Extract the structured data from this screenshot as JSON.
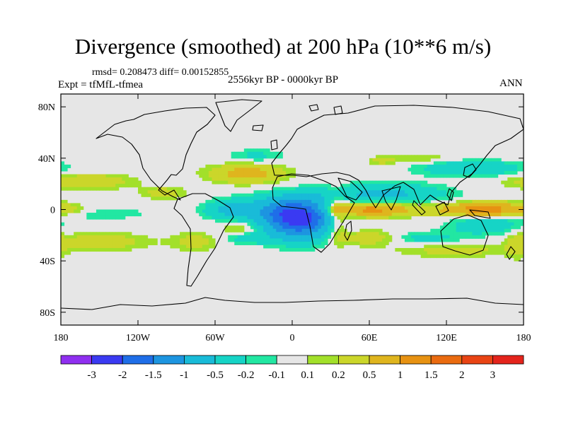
{
  "title": "Divergence (smoothed) at 200 hPa (10**6 m/s)",
  "stats": "rmsd= 0.208473 diff= 0.00152855",
  "experiment": "Expt = tfMfL-tfmea",
  "period": "2556kyr BP - 0000kyr BP",
  "season": "ANN",
  "lat_ticks": [
    "80N",
    "40N",
    "0",
    "40S",
    "80S"
  ],
  "lon_ticks": [
    "180",
    "120W",
    "60W",
    "0",
    "60E",
    "120E",
    "180"
  ],
  "colorbar": {
    "labels": [
      "-3",
      "-2",
      "-1.5",
      "-1",
      "-0.5",
      "-0.2",
      "-0.1",
      "0.1",
      "0.2",
      "0.5",
      "1",
      "1.5",
      "2",
      "3"
    ],
    "colors": [
      "#8f2ff0",
      "#3a3af2",
      "#1f6ee8",
      "#1d95e0",
      "#19bbd8",
      "#16d4c6",
      "#22e7a2",
      "#e6e6e6",
      "#a2e02a",
      "#cbd62a",
      "#dfb51e",
      "#e79212",
      "#ea6b10",
      "#e94414",
      "#e4241c"
    ]
  },
  "chart_data": {
    "type": "heatmap",
    "title": "Divergence (smoothed) at 200 hPa (10**6 m/s)",
    "variable": "200 hPa smoothed divergence difference",
    "units": "10**6 m/s",
    "lon_range": [
      -180,
      180
    ],
    "lat_range": [
      -90,
      90
    ],
    "levels": [
      -3,
      -2,
      -1.5,
      -1,
      -0.5,
      -0.2,
      -0.1,
      0.1,
      0.2,
      0.5,
      1,
      1.5,
      2,
      3
    ],
    "features": [
      {
        "lon": 5,
        "lat": -8,
        "lon_radius": 25,
        "lat_radius": 14,
        "value": -2.1
      },
      {
        "lon": -8,
        "lat": 0,
        "lon_radius": 35,
        "lat_radius": 10,
        "value": -0.7
      },
      {
        "lon": -50,
        "lat": 0,
        "lon_radius": 18,
        "lat_radius": 7,
        "value": -0.5
      },
      {
        "lon": 70,
        "lat": 12,
        "lon_radius": 48,
        "lat_radius": 8,
        "value": -0.6
      },
      {
        "lon": 140,
        "lat": 32,
        "lon_radius": 40,
        "lat_radius": 6,
        "value": -0.5
      },
      {
        "lon": 150,
        "lat": -12,
        "lon_radius": 28,
        "lat_radius": 8,
        "value": -0.4
      },
      {
        "lon": 100,
        "lat": -22,
        "lon_radius": 30,
        "lat_radius": 5,
        "value": -0.3
      },
      {
        "lon": -28,
        "lat": 42,
        "lon_radius": 22,
        "lat_radius": 5,
        "value": -0.25
      },
      {
        "lon": -150,
        "lat": -3,
        "lon_radius": 40,
        "lat_radius": 5,
        "value": -0.2
      },
      {
        "lon": -35,
        "lat": 28,
        "lon_radius": 28,
        "lat_radius": 7,
        "value": 0.7
      },
      {
        "lon": 60,
        "lat": 0,
        "lon_radius": 32,
        "lat_radius": 5,
        "value": 1.2
      },
      {
        "lon": 150,
        "lat": 0,
        "lon_radius": 35,
        "lat_radius": 5,
        "value": 1.3
      },
      {
        "lon": 35,
        "lat": -5,
        "lon_radius": 8,
        "lat_radius": 18,
        "value": 0.6
      },
      {
        "lon": -160,
        "lat": 22,
        "lon_radius": 35,
        "lat_radius": 6,
        "value": 0.4
      },
      {
        "lon": -100,
        "lat": 13,
        "lon_radius": 18,
        "lat_radius": 5,
        "value": 0.3
      },
      {
        "lon": -75,
        "lat": -25,
        "lon_radius": 18,
        "lat_radius": 7,
        "value": 0.3
      },
      {
        "lon": 60,
        "lat": -22,
        "lon_radius": 25,
        "lat_radius": 6,
        "value": 0.4
      },
      {
        "lon": -150,
        "lat": -25,
        "lon_radius": 38,
        "lat_radius": 7,
        "value": 0.35
      },
      {
        "lon": 125,
        "lat": -32,
        "lon_radius": 40,
        "lat_radius": 5,
        "value": 0.3
      },
      {
        "lon": 100,
        "lat": 40,
        "lon_radius": 25,
        "lat_radius": 4,
        "value": 0.2
      },
      {
        "lon": 70,
        "lat": 38,
        "lon_radius": 10,
        "lat_radius": 3,
        "value": 0.3
      },
      {
        "lon": -40,
        "lat": -15,
        "lon_radius": 15,
        "lat_radius": 5,
        "value": 0.3
      },
      {
        "lon": 175,
        "lat": -28,
        "lon_radius": 8,
        "lat_radius": 10,
        "value": 0.3
      },
      {
        "lon": -35,
        "lat": -22,
        "lon_radius": 20,
        "lat_radius": 5,
        "value": -0.3
      }
    ]
  }
}
